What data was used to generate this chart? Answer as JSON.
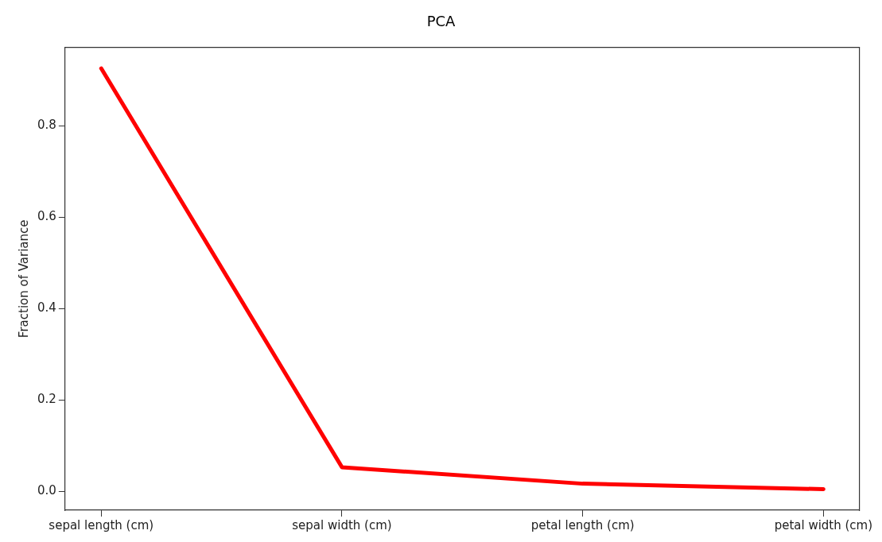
{
  "chart_data": {
    "type": "line",
    "title": "PCA",
    "ylabel": "Fraction of Variance",
    "categories": [
      "sepal length (cm)",
      "sepal width (cm)",
      "petal length (cm)",
      "petal width (cm)"
    ],
    "series": [
      {
        "color": "#ff0000",
        "values": [
          0.925,
          0.053,
          0.017,
          0.005
        ]
      }
    ],
    "ylim": [
      -0.041,
      0.971
    ],
    "yticks": [
      {
        "value": 0,
        "label": "0.0"
      },
      0.2,
      0.4,
      0.6,
      0.8
    ],
    "grid": false,
    "legend": false,
    "marker": "none",
    "line_style": "solid"
  }
}
